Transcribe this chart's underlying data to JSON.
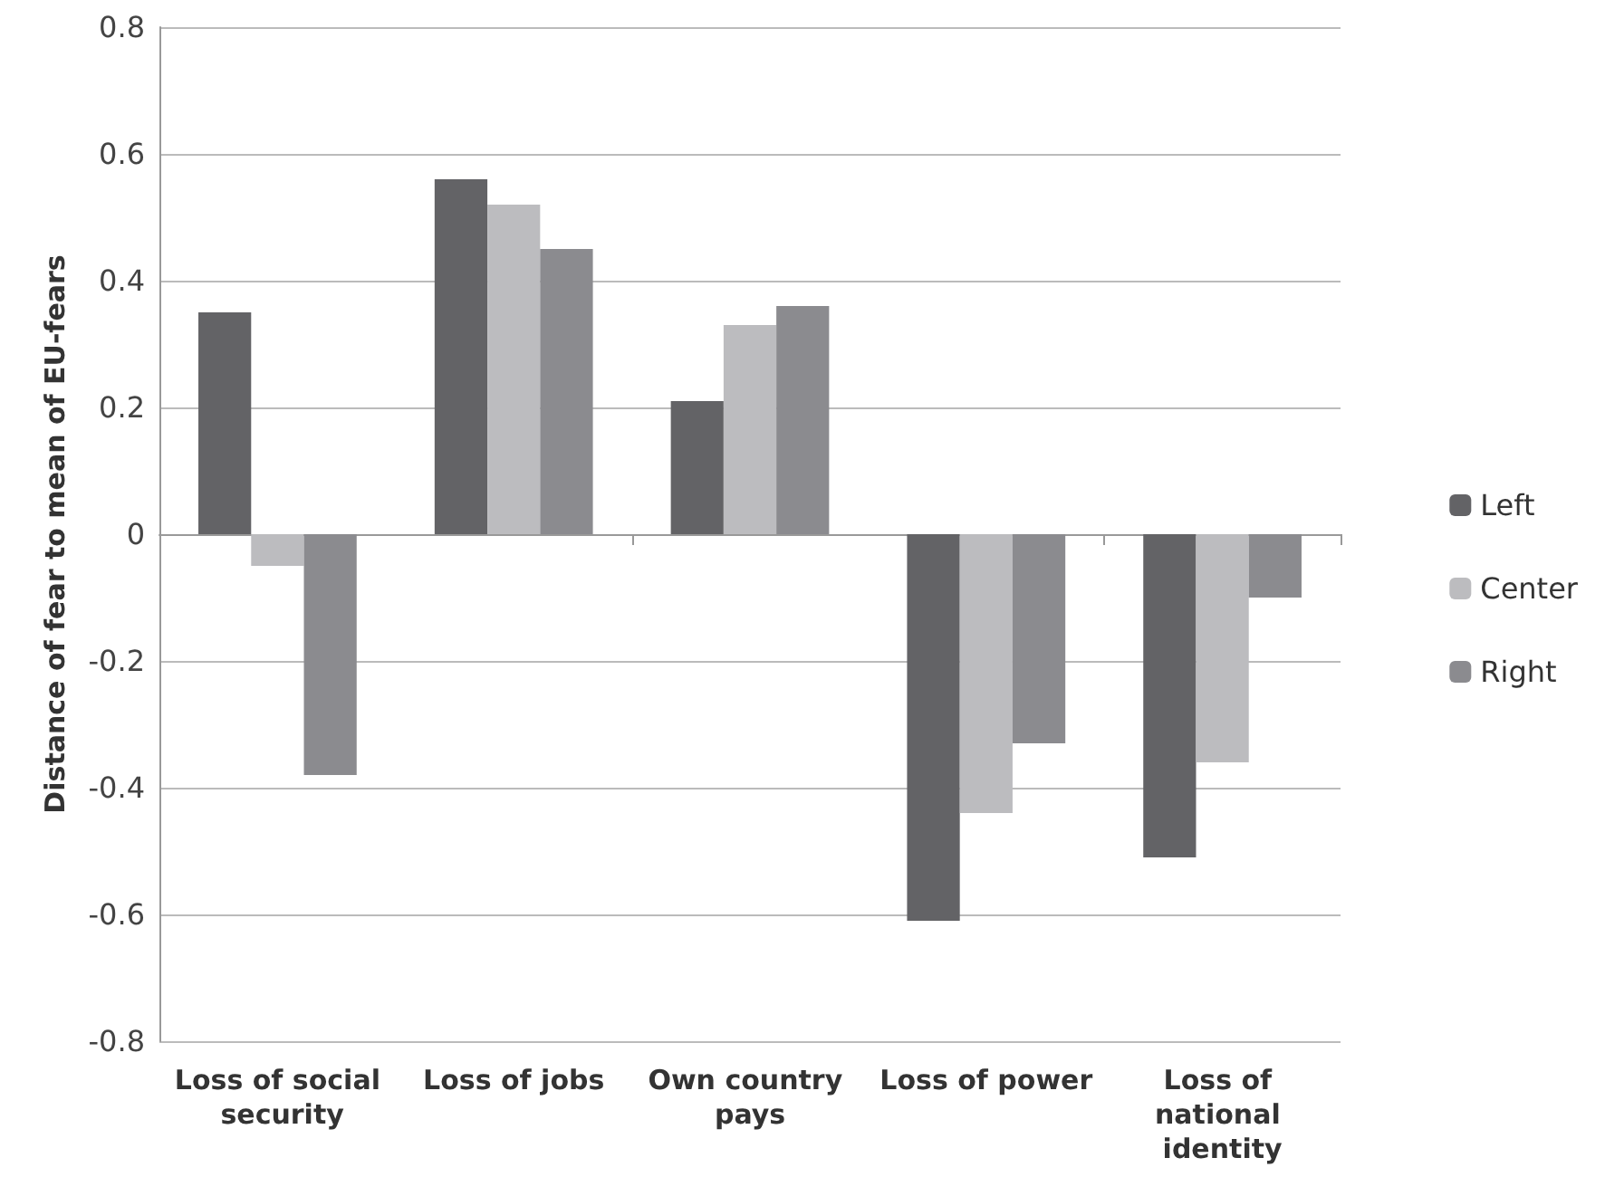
{
  "chart_data": {
    "type": "bar",
    "ylabel": "Distance of fear to mean of EU-fears",
    "categories": [
      "Loss of social security",
      "Loss of jobs",
      "Own country pays",
      "Loss of power",
      "Loss of national identity"
    ],
    "series": [
      {
        "name": "Left",
        "color": "#636366",
        "values": [
          0.35,
          0.56,
          0.21,
          -0.61,
          -0.51
        ]
      },
      {
        "name": "Center",
        "color": "#bcbcbf",
        "values": [
          -0.05,
          0.52,
          0.33,
          -0.44,
          -0.36
        ]
      },
      {
        "name": "Right",
        "color": "#8b8b8f",
        "values": [
          -0.38,
          0.45,
          0.36,
          -0.33,
          -0.1
        ]
      }
    ],
    "ylim": [
      -0.8,
      0.8
    ],
    "yticks": [
      -0.8,
      -0.6,
      -0.4,
      -0.2,
      0,
      0.2,
      0.4,
      0.6,
      0.8
    ],
    "grid": "y",
    "legend": "right"
  }
}
